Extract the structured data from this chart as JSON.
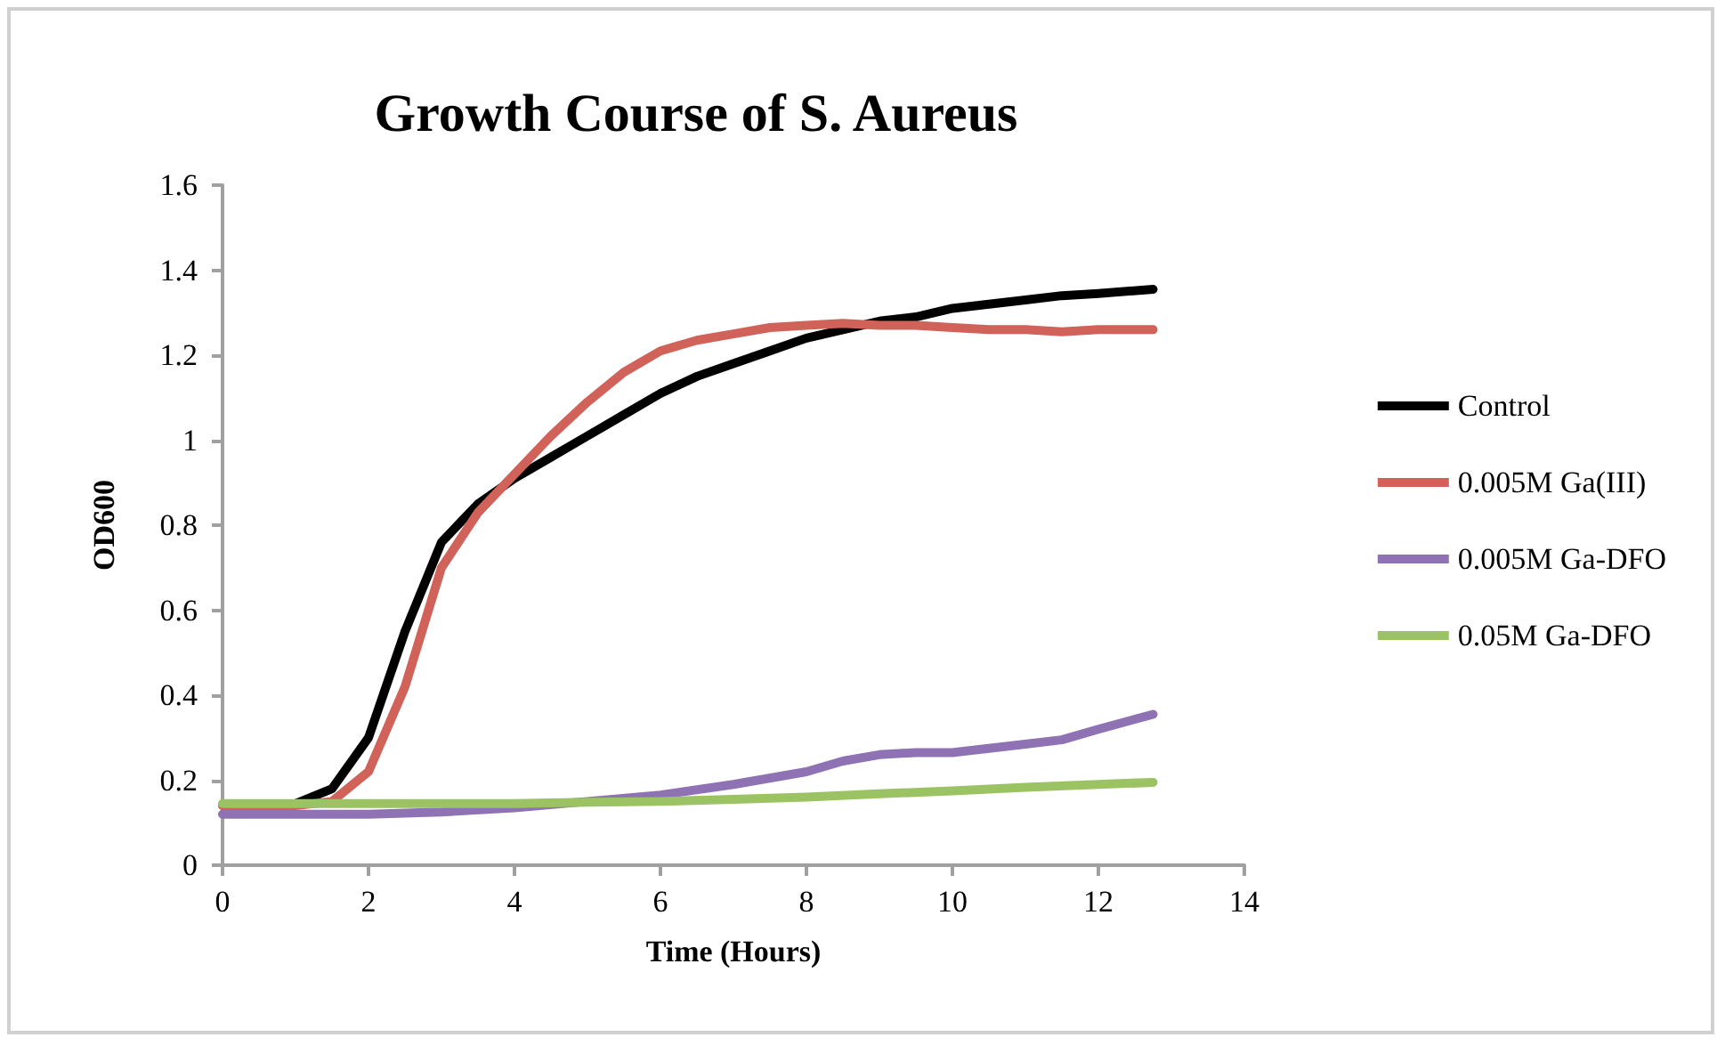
{
  "chart_data": {
    "type": "line",
    "title": "Growth Course of S. Aureus",
    "xlabel": "Time (Hours)",
    "ylabel": "OD600",
    "xlim": [
      0,
      14
    ],
    "xticks": [
      0,
      2,
      4,
      6,
      8,
      10,
      12,
      14
    ],
    "ylim": [
      0,
      1.6
    ],
    "yticks": [
      0,
      0.2,
      0.4,
      0.6,
      0.8,
      1,
      1.2,
      1.4,
      1.6
    ],
    "grid": false,
    "legend": "right",
    "marker": "none",
    "line_style": "solid",
    "series": [
      {
        "name": "Control",
        "color": "#000000",
        "x": [
          1,
          1.5,
          2,
          2.5,
          3,
          3.5,
          4,
          4.5,
          5,
          5.5,
          6,
          6.5,
          7,
          7.5,
          8,
          8.5,
          9,
          9.5,
          10,
          10.5,
          11,
          11.5,
          12,
          12.75
        ],
        "values": [
          0.145,
          0.18,
          0.3,
          0.55,
          0.76,
          0.85,
          0.91,
          0.96,
          1.01,
          1.06,
          1.11,
          1.15,
          1.18,
          1.21,
          1.24,
          1.26,
          1.28,
          1.29,
          1.31,
          1.32,
          1.33,
          1.34,
          1.345,
          1.355
        ]
      },
      {
        "name": "0.005M Ga(III)",
        "color": "#d0625a",
        "x": [
          0,
          0.5,
          1,
          1.5,
          2,
          2.5,
          3,
          3.5,
          4,
          4.5,
          5,
          5.5,
          6,
          6.5,
          7,
          7.5,
          8,
          8.5,
          9,
          9.5,
          10,
          10.5,
          11,
          11.5,
          12,
          12.75
        ],
        "values": [
          0.14,
          0.14,
          0.14,
          0.15,
          0.22,
          0.42,
          0.7,
          0.83,
          0.92,
          1.01,
          1.09,
          1.16,
          1.21,
          1.235,
          1.25,
          1.265,
          1.27,
          1.275,
          1.27,
          1.27,
          1.265,
          1.26,
          1.26,
          1.255,
          1.26,
          1.26
        ]
      },
      {
        "name": "0.005M Ga-DFO",
        "color": "#8e72b4",
        "x": [
          0,
          1,
          2,
          3,
          4,
          5,
          6,
          7,
          8,
          8.5,
          9,
          9.5,
          10,
          10.5,
          11,
          11.5,
          12,
          12.75
        ],
        "values": [
          0.12,
          0.12,
          0.12,
          0.125,
          0.135,
          0.15,
          0.165,
          0.19,
          0.22,
          0.245,
          0.26,
          0.265,
          0.265,
          0.275,
          0.285,
          0.295,
          0.32,
          0.355
        ]
      },
      {
        "name": "0.05M Ga-DFO",
        "color": "#9bc263",
        "x": [
          0,
          1,
          2,
          3,
          4,
          5,
          6,
          7,
          8,
          9,
          10,
          11,
          12,
          12.75
        ],
        "values": [
          0.145,
          0.145,
          0.145,
          0.145,
          0.145,
          0.148,
          0.15,
          0.155,
          0.16,
          0.168,
          0.175,
          0.183,
          0.19,
          0.195
        ]
      }
    ]
  }
}
